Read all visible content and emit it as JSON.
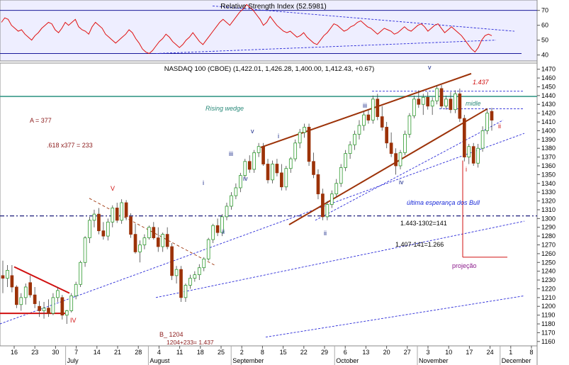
{
  "rsi_panel": {
    "title": "Relative Strength Index (52.5981)",
    "y_ticks": [
      40,
      50,
      60,
      70
    ],
    "ylim": [
      36,
      77
    ]
  },
  "price_panel": {
    "title": "NASDAQ 100 (CBOE) (1,422.01, 1,426.28, 1,400.00, 1,412.43, +0.67)",
    "y_ticks": [
      1160,
      1170,
      1180,
      1190,
      1200,
      1210,
      1220,
      1230,
      1240,
      1250,
      1260,
      1270,
      1280,
      1290,
      1300,
      1310,
      1320,
      1330,
      1340,
      1350,
      1360,
      1370,
      1380,
      1390,
      1400,
      1410,
      1420,
      1430,
      1440,
      1450,
      1460,
      1470
    ],
    "ylim": [
      1155,
      1477
    ]
  },
  "x_axis": {
    "days": [
      "16",
      "23",
      "30",
      "7",
      "14",
      "21",
      "28",
      "4",
      "11",
      "18",
      "25",
      "2",
      "8",
      "15",
      "22",
      "29",
      "6",
      "13",
      "20",
      "27",
      "3",
      "10",
      "17",
      "24",
      "1",
      "8"
    ],
    "months": [
      "July",
      "August",
      "September",
      "October",
      "November",
      "December"
    ]
  },
  "annotations": {
    "a377": "A = 377",
    "fib": ".618 x377 = 233",
    "b1204": "B_ 1204",
    "calc1": "1204+233= 1.437",
    "rising": "Rising wedge",
    "t1437": "1.437",
    "midle": "midle",
    "ultima": "última esperança dos Bull",
    "calc2": "1.443-1302=141",
    "calc3": "1.407-141=1.266",
    "proj": "projeção",
    "w_V": "V",
    "w_IV": "IV",
    "w_i1": "i",
    "w_ii1": "ii",
    "w_iii1": "iii",
    "w_iv1": "iv",
    "w_v1": "v",
    "w_i2": "i",
    "w_ii2": "ii",
    "w_iii2": "iii",
    "w_iv2": "iv",
    "w_v2": "v",
    "w_i3": "i",
    "w_ii3": "ii"
  },
  "colors": {
    "up": "#2e9a2e",
    "down": "#9c3208",
    "wedge": "#9c3208",
    "channel": "#2a2ad8",
    "rsi": "#e01010",
    "resistance": "#3a9a8a",
    "red": "#d01010",
    "annot_red": "#8b1a1a",
    "annot_navy": "#1a2a8a"
  },
  "chart_data": [
    {
      "type": "line",
      "title": "Relative Strength Index (52.5981)",
      "ylim": [
        36,
        77
      ],
      "ticks_y": [
        40,
        50,
        60,
        70
      ],
      "series": [
        {
          "values": [
            62,
            65,
            64,
            60,
            58,
            56,
            57,
            54,
            52,
            50,
            53,
            55,
            58,
            60,
            62,
            61,
            57,
            55,
            58,
            62,
            60,
            62,
            64,
            59,
            57,
            56,
            54,
            59,
            62,
            60,
            58,
            54,
            52,
            50,
            48,
            50,
            52,
            54,
            57,
            55,
            51,
            48,
            44,
            42,
            41,
            43,
            46,
            49,
            51,
            54,
            52,
            49,
            47,
            45,
            47,
            50,
            52,
            55,
            52,
            49,
            47,
            50,
            53,
            56,
            59,
            62,
            64,
            62,
            60,
            63,
            66,
            69,
            71,
            74,
            72,
            70,
            67,
            64,
            60,
            62,
            66,
            63,
            60,
            58,
            56,
            55,
            56,
            54,
            52,
            53,
            55,
            52,
            50,
            48,
            47,
            50,
            53,
            55,
            58,
            61,
            60,
            58,
            56,
            57,
            59,
            60,
            62,
            63,
            61,
            59,
            58,
            56,
            54,
            56,
            58,
            57,
            56,
            54,
            55,
            57,
            59,
            57,
            56,
            58,
            60,
            61,
            59,
            56,
            58,
            60,
            61,
            58,
            55,
            57,
            59,
            57,
            55,
            53,
            50,
            47,
            44,
            42,
            45,
            50,
            53,
            54,
            53
          ]
        }
      ]
    },
    {
      "type": "candlestick",
      "title": "NASDAQ 100 (CBOE) (1,422.01, 1,426.28, 1,400.00, 1,412.43, +0.67)",
      "ylim": [
        1155,
        1477
      ],
      "candles": [
        {
          "o": 1235,
          "h": 1252,
          "l": 1215,
          "c": 1232
        },
        {
          "o": 1232,
          "h": 1247,
          "l": 1222,
          "c": 1241
        },
        {
          "o": 1235,
          "h": 1247,
          "l": 1216,
          "c": 1222
        },
        {
          "o": 1222,
          "h": 1224,
          "l": 1198,
          "c": 1202
        },
        {
          "o": 1202,
          "h": 1215,
          "l": 1195,
          "c": 1210
        },
        {
          "o": 1210,
          "h": 1226,
          "l": 1202,
          "c": 1222
        },
        {
          "o": 1227,
          "h": 1235,
          "l": 1210,
          "c": 1213
        },
        {
          "o": 1213,
          "h": 1222,
          "l": 1198,
          "c": 1203
        },
        {
          "o": 1200,
          "h": 1206,
          "l": 1188,
          "c": 1195
        },
        {
          "o": 1195,
          "h": 1205,
          "l": 1186,
          "c": 1198
        },
        {
          "o": 1198,
          "h": 1208,
          "l": 1188,
          "c": 1192
        },
        {
          "o": 1192,
          "h": 1215,
          "l": 1190,
          "c": 1210
        },
        {
          "o": 1210,
          "h": 1222,
          "l": 1205,
          "c": 1218
        },
        {
          "o": 1210,
          "h": 1213,
          "l": 1185,
          "c": 1190
        },
        {
          "o": 1190,
          "h": 1196,
          "l": 1180,
          "c": 1195
        },
        {
          "o": 1195,
          "h": 1215,
          "l": 1193,
          "c": 1212
        },
        {
          "o": 1212,
          "h": 1228,
          "l": 1208,
          "c": 1225
        },
        {
          "o": 1225,
          "h": 1252,
          "l": 1222,
          "c": 1250
        },
        {
          "o": 1250,
          "h": 1280,
          "l": 1245,
          "c": 1278
        },
        {
          "o": 1278,
          "h": 1302,
          "l": 1272,
          "c": 1298
        },
        {
          "o": 1298,
          "h": 1310,
          "l": 1290,
          "c": 1305
        },
        {
          "o": 1305,
          "h": 1312,
          "l": 1282,
          "c": 1286
        },
        {
          "o": 1286,
          "h": 1296,
          "l": 1276,
          "c": 1280
        },
        {
          "o": 1280,
          "h": 1300,
          "l": 1275,
          "c": 1296
        },
        {
          "o": 1296,
          "h": 1315,
          "l": 1290,
          "c": 1312
        },
        {
          "o": 1312,
          "h": 1318,
          "l": 1295,
          "c": 1298
        },
        {
          "o": 1298,
          "h": 1322,
          "l": 1294,
          "c": 1318
        },
        {
          "o": 1318,
          "h": 1321,
          "l": 1298,
          "c": 1302
        },
        {
          "o": 1302,
          "h": 1306,
          "l": 1278,
          "c": 1282
        },
        {
          "o": 1282,
          "h": 1294,
          "l": 1260,
          "c": 1262
        },
        {
          "o": 1262,
          "h": 1275,
          "l": 1250,
          "c": 1270
        },
        {
          "o": 1270,
          "h": 1282,
          "l": 1265,
          "c": 1278
        },
        {
          "o": 1278,
          "h": 1292,
          "l": 1276,
          "c": 1290
        },
        {
          "o": 1290,
          "h": 1296,
          "l": 1276,
          "c": 1278
        },
        {
          "o": 1278,
          "h": 1290,
          "l": 1262,
          "c": 1268
        },
        {
          "o": 1268,
          "h": 1284,
          "l": 1262,
          "c": 1282
        },
        {
          "o": 1282,
          "h": 1290,
          "l": 1265,
          "c": 1268
        },
        {
          "o": 1268,
          "h": 1272,
          "l": 1230,
          "c": 1235
        },
        {
          "o": 1235,
          "h": 1246,
          "l": 1226,
          "c": 1242
        },
        {
          "o": 1242,
          "h": 1246,
          "l": 1205,
          "c": 1210
        },
        {
          "o": 1210,
          "h": 1226,
          "l": 1205,
          "c": 1224
        },
        {
          "o": 1224,
          "h": 1236,
          "l": 1220,
          "c": 1232
        },
        {
          "o": 1232,
          "h": 1240,
          "l": 1228,
          "c": 1236
        },
        {
          "o": 1236,
          "h": 1248,
          "l": 1230,
          "c": 1244
        },
        {
          "o": 1244,
          "h": 1256,
          "l": 1240,
          "c": 1254
        },
        {
          "o": 1254,
          "h": 1278,
          "l": 1252,
          "c": 1276
        },
        {
          "o": 1276,
          "h": 1294,
          "l": 1272,
          "c": 1292
        },
        {
          "o": 1292,
          "h": 1300,
          "l": 1280,
          "c": 1284
        },
        {
          "o": 1284,
          "h": 1305,
          "l": 1280,
          "c": 1302
        },
        {
          "o": 1302,
          "h": 1318,
          "l": 1298,
          "c": 1314
        },
        {
          "o": 1314,
          "h": 1330,
          "l": 1310,
          "c": 1326
        },
        {
          "o": 1326,
          "h": 1340,
          "l": 1322,
          "c": 1335
        },
        {
          "o": 1335,
          "h": 1352,
          "l": 1330,
          "c": 1349
        },
        {
          "o": 1349,
          "h": 1368,
          "l": 1345,
          "c": 1365
        },
        {
          "o": 1365,
          "h": 1372,
          "l": 1352,
          "c": 1356
        },
        {
          "o": 1356,
          "h": 1378,
          "l": 1352,
          "c": 1375
        },
        {
          "o": 1375,
          "h": 1386,
          "l": 1370,
          "c": 1382
        },
        {
          "o": 1382,
          "h": 1386,
          "l": 1360,
          "c": 1362
        },
        {
          "o": 1362,
          "h": 1368,
          "l": 1340,
          "c": 1344
        },
        {
          "o": 1344,
          "h": 1366,
          "l": 1340,
          "c": 1362
        },
        {
          "o": 1362,
          "h": 1368,
          "l": 1348,
          "c": 1352
        },
        {
          "o": 1352,
          "h": 1362,
          "l": 1332,
          "c": 1336
        },
        {
          "o": 1336,
          "h": 1360,
          "l": 1332,
          "c": 1357
        },
        {
          "o": 1357,
          "h": 1370,
          "l": 1352,
          "c": 1368
        },
        {
          "o": 1368,
          "h": 1390,
          "l": 1365,
          "c": 1386
        },
        {
          "o": 1386,
          "h": 1402,
          "l": 1380,
          "c": 1398
        },
        {
          "o": 1398,
          "h": 1408,
          "l": 1392,
          "c": 1404
        },
        {
          "o": 1404,
          "h": 1408,
          "l": 1360,
          "c": 1365
        },
        {
          "o": 1365,
          "h": 1375,
          "l": 1346,
          "c": 1350
        },
        {
          "o": 1350,
          "h": 1356,
          "l": 1322,
          "c": 1328
        },
        {
          "o": 1328,
          "h": 1334,
          "l": 1298,
          "c": 1302
        },
        {
          "o": 1302,
          "h": 1320,
          "l": 1298,
          "c": 1316
        },
        {
          "o": 1316,
          "h": 1332,
          "l": 1312,
          "c": 1328
        },
        {
          "o": 1328,
          "h": 1345,
          "l": 1324,
          "c": 1340
        },
        {
          "o": 1340,
          "h": 1362,
          "l": 1336,
          "c": 1358
        },
        {
          "o": 1358,
          "h": 1378,
          "l": 1354,
          "c": 1374
        },
        {
          "o": 1374,
          "h": 1388,
          "l": 1368,
          "c": 1384
        },
        {
          "o": 1384,
          "h": 1400,
          "l": 1378,
          "c": 1396
        },
        {
          "o": 1396,
          "h": 1412,
          "l": 1390,
          "c": 1406
        },
        {
          "o": 1406,
          "h": 1422,
          "l": 1400,
          "c": 1418
        },
        {
          "o": 1418,
          "h": 1424,
          "l": 1408,
          "c": 1412
        },
        {
          "o": 1412,
          "h": 1440,
          "l": 1408,
          "c": 1436
        },
        {
          "o": 1436,
          "h": 1442,
          "l": 1412,
          "c": 1416
        },
        {
          "o": 1416,
          "h": 1428,
          "l": 1400,
          "c": 1404
        },
        {
          "o": 1404,
          "h": 1410,
          "l": 1380,
          "c": 1386
        },
        {
          "o": 1386,
          "h": 1398,
          "l": 1370,
          "c": 1374
        },
        {
          "o": 1374,
          "h": 1380,
          "l": 1350,
          "c": 1360
        },
        {
          "o": 1360,
          "h": 1378,
          "l": 1356,
          "c": 1375
        },
        {
          "o": 1375,
          "h": 1400,
          "l": 1372,
          "c": 1396
        },
        {
          "o": 1396,
          "h": 1420,
          "l": 1392,
          "c": 1417
        },
        {
          "o": 1417,
          "h": 1440,
          "l": 1414,
          "c": 1436
        },
        {
          "o": 1436,
          "h": 1446,
          "l": 1426,
          "c": 1430
        },
        {
          "o": 1430,
          "h": 1442,
          "l": 1418,
          "c": 1438
        },
        {
          "o": 1438,
          "h": 1444,
          "l": 1424,
          "c": 1428
        },
        {
          "o": 1428,
          "h": 1438,
          "l": 1418,
          "c": 1434
        },
        {
          "o": 1434,
          "h": 1452,
          "l": 1430,
          "c": 1448
        },
        {
          "o": 1448,
          "h": 1452,
          "l": 1425,
          "c": 1428
        },
        {
          "o": 1428,
          "h": 1440,
          "l": 1424,
          "c": 1436
        },
        {
          "o": 1436,
          "h": 1444,
          "l": 1420,
          "c": 1424
        },
        {
          "o": 1424,
          "h": 1446,
          "l": 1420,
          "c": 1442
        },
        {
          "o": 1442,
          "h": 1448,
          "l": 1410,
          "c": 1414
        },
        {
          "o": 1414,
          "h": 1418,
          "l": 1365,
          "c": 1370
        },
        {
          "o": 1370,
          "h": 1385,
          "l": 1362,
          "c": 1382
        },
        {
          "o": 1382,
          "h": 1386,
          "l": 1360,
          "c": 1363
        },
        {
          "o": 1363,
          "h": 1385,
          "l": 1358,
          "c": 1380
        },
        {
          "o": 1380,
          "h": 1405,
          "l": 1376,
          "c": 1400
        },
        {
          "o": 1400,
          "h": 1425,
          "l": 1396,
          "c": 1420
        },
        {
          "o": 1422,
          "h": 1426,
          "l": 1400,
          "c": 1412
        }
      ]
    }
  ]
}
